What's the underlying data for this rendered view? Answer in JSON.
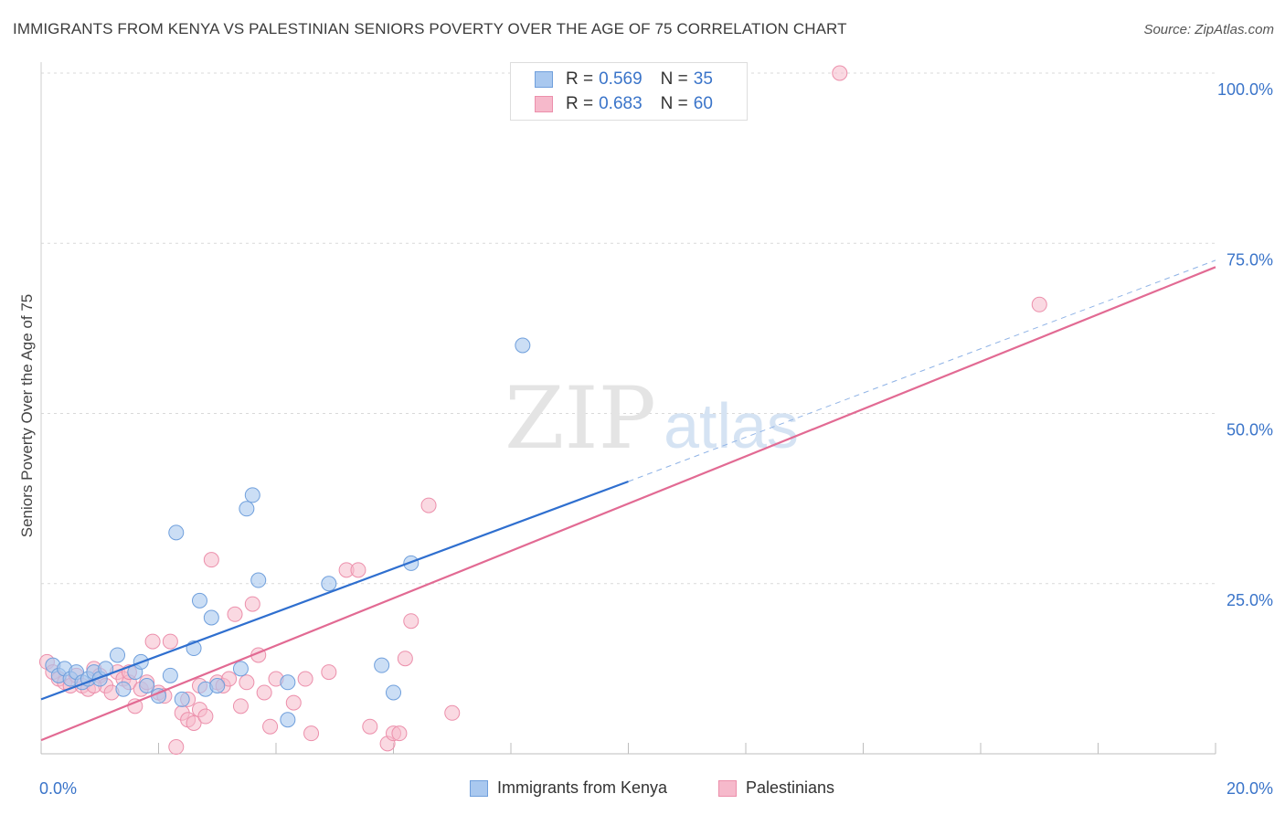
{
  "title": "IMMIGRANTS FROM KENYA VS PALESTINIAN SENIORS POVERTY OVER THE AGE OF 75 CORRELATION CHART",
  "source": "Source: ZipAtlas.com",
  "watermark": {
    "zip": "ZIP",
    "atlas": "atlas"
  },
  "legend": {
    "r_label": "R =",
    "n_label": "N =",
    "series": [
      {
        "r": "0.569",
        "n": "35"
      },
      {
        "r": "0.683",
        "n": "60"
      }
    ]
  },
  "colors": {
    "kenya_fill": "#a9c8ef",
    "kenya_stroke": "#6f9fdc",
    "kenya_line": "#2f6fcf",
    "pal_fill": "#f6b9cb",
    "pal_stroke": "#ec8fab",
    "pal_line": "#e26a93",
    "grid": "#d9d9d9",
    "tick_text": "#3a74c9"
  },
  "chart_data": {
    "type": "scatter",
    "title": "IMMIGRANTS FROM KENYA VS PALESTINIAN SENIORS POVERTY OVER THE AGE OF 75 CORRELATION CHART",
    "xlabel": "",
    "ylabel": "Seniors Poverty Over the Age of 75",
    "xlim": [
      0,
      20
    ],
    "ylim": [
      0,
      100
    ],
    "x_tick_labels": [
      "0.0%",
      "20.0%"
    ],
    "y_ticks": [
      25,
      50,
      75,
      100
    ],
    "y_tick_labels": [
      "25.0%",
      "50.0%",
      "75.0%",
      "100.0%"
    ],
    "grid": true,
    "legend_position": "top-center",
    "series": [
      {
        "name": "Immigrants from Kenya",
        "r": 0.569,
        "n": 35,
        "points": [
          [
            0.2,
            13.0
          ],
          [
            0.3,
            11.5
          ],
          [
            0.4,
            12.5
          ],
          [
            0.5,
            11.0
          ],
          [
            0.6,
            12.0
          ],
          [
            0.7,
            10.5
          ],
          [
            0.8,
            11.0
          ],
          [
            0.9,
            12.0
          ],
          [
            1.0,
            11.0
          ],
          [
            1.1,
            12.5
          ],
          [
            1.3,
            14.5
          ],
          [
            1.4,
            9.5
          ],
          [
            1.6,
            12.0
          ],
          [
            1.7,
            13.5
          ],
          [
            1.8,
            10.0
          ],
          [
            2.0,
            8.5
          ],
          [
            2.2,
            11.5
          ],
          [
            2.3,
            32.5
          ],
          [
            2.4,
            8.0
          ],
          [
            2.6,
            15.5
          ],
          [
            2.7,
            22.5
          ],
          [
            2.8,
            9.5
          ],
          [
            2.9,
            20.0
          ],
          [
            3.0,
            10.0
          ],
          [
            3.4,
            12.5
          ],
          [
            3.5,
            36.0
          ],
          [
            3.6,
            38.0
          ],
          [
            3.7,
            25.5
          ],
          [
            4.2,
            10.5
          ],
          [
            4.2,
            5.0
          ],
          [
            4.9,
            25.0
          ],
          [
            5.8,
            13.0
          ],
          [
            6.0,
            9.0
          ],
          [
            6.3,
            28.0
          ],
          [
            8.2,
            60.0
          ]
        ],
        "trend": {
          "x": [
            0,
            10
          ],
          "y": [
            8.0,
            40.0
          ],
          "extended_to": [
            20,
            72.5
          ]
        }
      },
      {
        "name": "Palestinians",
        "r": 0.683,
        "n": 60,
        "points": [
          [
            0.1,
            13.5
          ],
          [
            0.2,
            12.0
          ],
          [
            0.3,
            11.0
          ],
          [
            0.4,
            10.5
          ],
          [
            0.5,
            10.0
          ],
          [
            0.6,
            11.5
          ],
          [
            0.7,
            10.0
          ],
          [
            0.8,
            9.5
          ],
          [
            0.9,
            12.5
          ],
          [
            1.0,
            11.5
          ],
          [
            1.1,
            10.0
          ],
          [
            1.2,
            9.0
          ],
          [
            1.3,
            12.0
          ],
          [
            1.4,
            11.0
          ],
          [
            1.5,
            10.5
          ],
          [
            1.6,
            7.0
          ],
          [
            1.7,
            9.5
          ],
          [
            1.8,
            10.5
          ],
          [
            1.9,
            16.5
          ],
          [
            2.0,
            9.0
          ],
          [
            2.1,
            8.5
          ],
          [
            2.2,
            16.5
          ],
          [
            2.3,
            1.0
          ],
          [
            2.4,
            6.0
          ],
          [
            2.5,
            8.0
          ],
          [
            2.5,
            5.0
          ],
          [
            2.6,
            4.5
          ],
          [
            2.7,
            6.5
          ],
          [
            2.8,
            5.5
          ],
          [
            2.9,
            28.5
          ],
          [
            3.0,
            10.5
          ],
          [
            3.1,
            10.0
          ],
          [
            3.2,
            11.0
          ],
          [
            3.3,
            20.5
          ],
          [
            3.4,
            7.0
          ],
          [
            3.5,
            10.5
          ],
          [
            3.6,
            22.0
          ],
          [
            3.7,
            14.5
          ],
          [
            3.8,
            9.0
          ],
          [
            3.9,
            4.0
          ],
          [
            4.0,
            11.0
          ],
          [
            4.3,
            7.5
          ],
          [
            4.5,
            11.0
          ],
          [
            4.6,
            3.0
          ],
          [
            4.9,
            12.0
          ],
          [
            5.2,
            27.0
          ],
          [
            5.4,
            27.0
          ],
          [
            5.6,
            4.0
          ],
          [
            5.9,
            1.5
          ],
          [
            6.0,
            3.0
          ],
          [
            6.1,
            3.0
          ],
          [
            6.2,
            14.0
          ],
          [
            6.3,
            19.5
          ],
          [
            6.6,
            36.5
          ],
          [
            7.0,
            6.0
          ],
          [
            13.6,
            100.0
          ],
          [
            17.0,
            66.0
          ],
          [
            1.5,
            12.0
          ],
          [
            0.9,
            10.0
          ],
          [
            2.7,
            10.0
          ]
        ],
        "trend": {
          "x": [
            0,
            20
          ],
          "y": [
            2.0,
            71.5
          ]
        }
      }
    ]
  }
}
